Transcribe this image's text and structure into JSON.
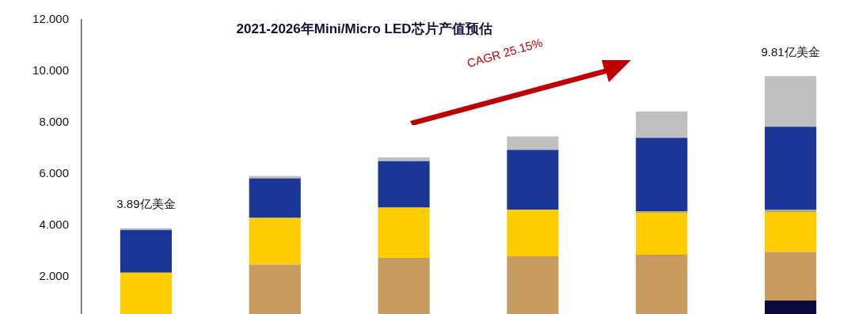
{
  "chart_data": {
    "type": "bar",
    "title": "2021-2026年Mini/Micro LED芯片产值预估",
    "categories": [
      null,
      null,
      null,
      null,
      null,
      null
    ],
    "stacked": true,
    "series": [
      {
        "color": "#0a0a3c",
        "values": [
          null,
          null,
          null,
          null,
          null,
          1.08
        ]
      },
      {
        "color": "#c79a5e",
        "values": [
          null,
          2.48,
          2.74,
          2.8,
          2.86,
          1.89
        ]
      },
      {
        "color": "#ffcc00",
        "values": [
          2.16,
          1.81,
          1.95,
          1.81,
          1.63,
          1.55
        ]
      },
      {
        "color": "#a9a77a",
        "values": [
          null,
          null,
          null,
          null,
          0.06,
          0.09
        ]
      },
      {
        "color": "#1a3696",
        "values": [
          1.66,
          1.54,
          1.81,
          2.33,
          2.86,
          3.23
        ]
      },
      {
        "color": "#bfbfbf",
        "values": [
          0.07,
          0.09,
          0.15,
          0.52,
          1.02,
          1.97
        ]
      }
    ],
    "ylim": [
      0,
      12
    ],
    "yticks": [
      {
        "value": 2,
        "label": "2.000"
      },
      {
        "value": 4,
        "label": "4.000"
      },
      {
        "value": 6,
        "label": "6.000"
      },
      {
        "value": 8,
        "label": "8.000"
      },
      {
        "value": 10,
        "label": "10.000"
      },
      {
        "value": 12,
        "label": "12.000"
      }
    ],
    "tick_labels": "y",
    "totals": [
      "3.89亿美金",
      null,
      null,
      null,
      null,
      "9.81亿美金"
    ],
    "annotations": [
      "CAGR 25.15%"
    ]
  }
}
